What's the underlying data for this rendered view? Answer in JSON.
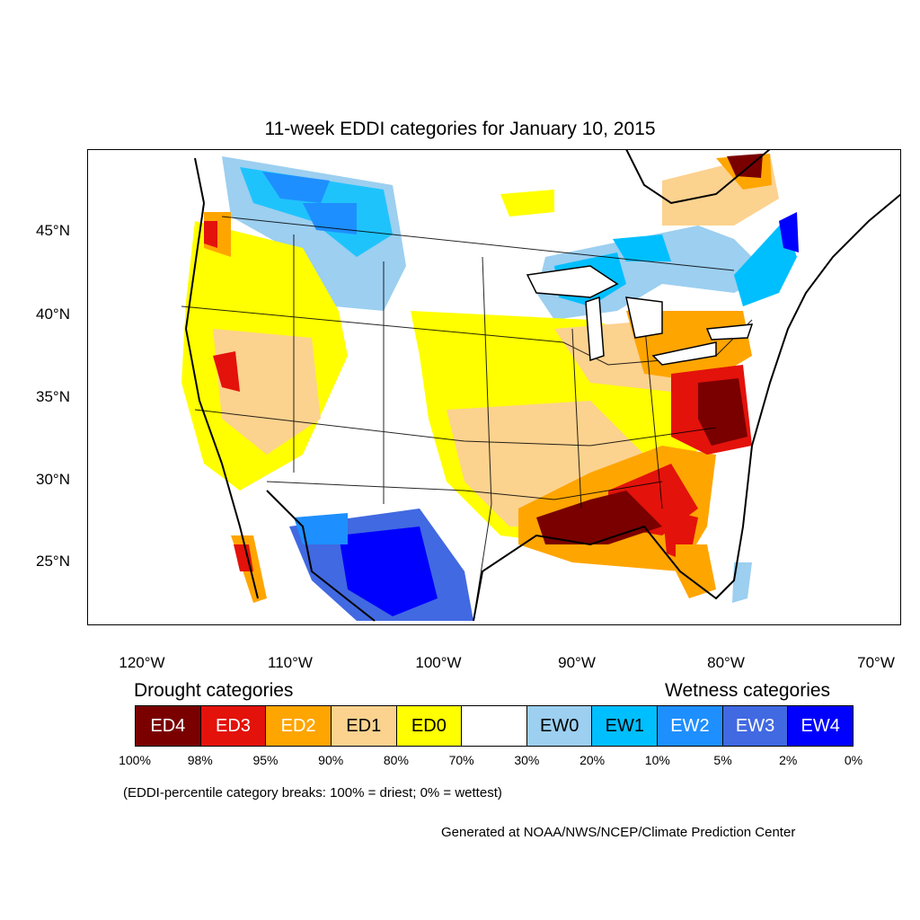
{
  "title": "11-week EDDI categories for January 10, 2015",
  "lat_labels": [
    "45°N",
    "40°N",
    "35°N",
    "30°N",
    "25°N"
  ],
  "lon_labels": [
    "120°W",
    "110°W",
    "100°W",
    "90°W",
    "80°W",
    "70°W"
  ],
  "legend": {
    "drought_title": "Drought categories",
    "wetness_title": "Wetness categories",
    "categories": [
      {
        "label": "ED4",
        "color": "#7a0000",
        "text_color": "#ffffff"
      },
      {
        "label": "ED3",
        "color": "#e3120b",
        "text_color": "#ffffff"
      },
      {
        "label": "ED2",
        "color": "#ffa500",
        "text_color": "#ffffff"
      },
      {
        "label": "ED1",
        "color": "#fcd28f",
        "text_color": "#000000"
      },
      {
        "label": "ED0",
        "color": "#ffff00",
        "text_color": "#000000"
      },
      {
        "label": "",
        "color": "#ffffff",
        "text_color": "#000000"
      },
      {
        "label": "EW0",
        "color": "#9ccff0",
        "text_color": "#000000"
      },
      {
        "label": "EW1",
        "color": "#00bfff",
        "text_color": "#000000"
      },
      {
        "label": "EW2",
        "color": "#1e8fff",
        "text_color": "#ffffff"
      },
      {
        "label": "EW3",
        "color": "#4169e1",
        "text_color": "#ffffff"
      },
      {
        "label": "EW4",
        "color": "#0000ff",
        "text_color": "#ffffff"
      }
    ],
    "percentiles": [
      "100%",
      "98%",
      "95%",
      "90%",
      "80%",
      "70%",
      "30%",
      "20%",
      "10%",
      "5%",
      "2%",
      "0%"
    ],
    "note": "(EDDI-percentile category breaks: 100% = driest; 0% = wettest)"
  },
  "credit": "Generated at NOAA/NWS/NCEP/Climate Prediction Center",
  "map_regions": [
    "ED4 Gulf Coast Louisiana-Florida panhandle",
    "ED4 Virginia-North Carolina coast",
    "ED4 Quebec north-east",
    "EW4 west Texas / northern Mexico",
    "EW4 Maine-New Brunswick",
    "EW2 Alberta / Saskatchewan / Ontario"
  ]
}
